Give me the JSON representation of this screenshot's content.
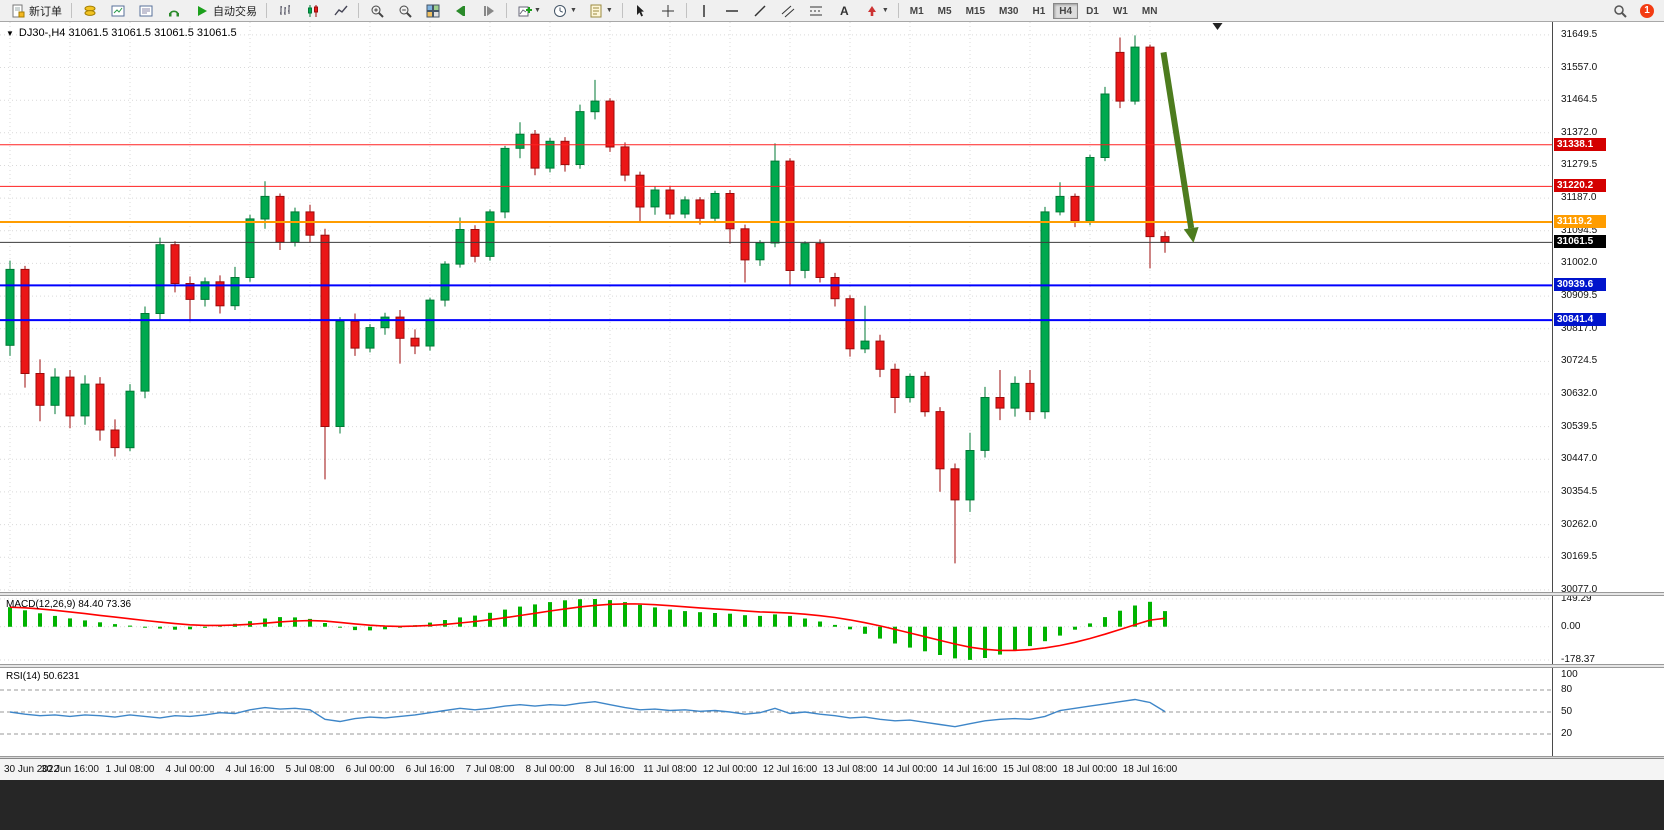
{
  "toolbar": {
    "new_order_label": "新订单",
    "auto_trading_label": "自动交易",
    "timeframes": [
      "M1",
      "M5",
      "M15",
      "M30",
      "H1",
      "H4",
      "D1",
      "W1",
      "MN"
    ],
    "active_timeframe": "H4",
    "notification_count": "1"
  },
  "icons": {
    "new_order": "document-plus",
    "auto_trading": "play-triangle-green",
    "search": "magnifier",
    "cursor": "arrow-pointer",
    "crosshair": "plus-cross",
    "text_tool": "letter-A"
  },
  "chart": {
    "title": "DJ30-,H4  31061.5 31061.5 31061.5 31061.5",
    "symbol": "DJ30-",
    "timeframe": "H4"
  },
  "indicators": {
    "macd_label": "MACD(12,26,9) 84.40 73.36",
    "rsi_label": "RSI(14) 50.6231"
  },
  "colors": {
    "up": "#00a94f",
    "up_stroke": "#007a35",
    "down": "#ea1717",
    "down_stroke": "#9c0b0b",
    "grid": "#d9d9d9",
    "macd_hist": "#00b300",
    "macd_signal": "#ff0000",
    "rsi_line": "#3e86c8",
    "accent_red_line": "#ff2020",
    "accent_orange_line": "#ff9d00",
    "accent_blue_line": "#0000ff"
  },
  "axes": {
    "price_ticks": [
      31649.5,
      31557.0,
      31464.5,
      31372.0,
      31279.5,
      31187.0,
      31094.5,
      31002.0,
      30909.5,
      30817.0,
      30724.5,
      30632.0,
      30539.5,
      30447.0,
      30354.5,
      30262.0,
      30169.5,
      30077.0
    ],
    "macd_ticks": [
      {
        "label": "149.29",
        "value": 149.29
      },
      {
        "label": "0.00",
        "value": 0
      },
      {
        "label": "-178.37",
        "value": -178.37
      }
    ],
    "rsi_ticks": [
      {
        "label": "100",
        "value": 100
      },
      {
        "label": "80",
        "value": 80
      },
      {
        "label": "50",
        "value": 50
      },
      {
        "label": "20",
        "value": 20
      }
    ],
    "time_labels": [
      "30 Jun 2022",
      "30 Jun 16:00",
      "1 Jul 08:00",
      "4 Jul 00:00",
      "4 Jul 16:00",
      "5 Jul 08:00",
      "6 Jul 00:00",
      "6 Jul 16:00",
      "7 Jul 08:00",
      "8 Jul 00:00",
      "8 Jul 16:00",
      "11 Jul 08:00",
      "12 Jul 00:00",
      "12 Jul 16:00",
      "13 Jul 08:00",
      "14 Jul 00:00",
      "14 Jul 16:00",
      "15 Jul 08:00",
      "18 Jul 00:00",
      "18 Jul 16:00"
    ]
  },
  "chart_data": [
    {
      "type": "candlestick",
      "symbol": "DJ30-",
      "timeframe": "H4",
      "ohlc_current": [
        31061.5,
        31061.5,
        31061.5,
        31061.5
      ],
      "ylim": [
        30071,
        31686
      ],
      "candles": [
        [
          30770,
          31010,
          30740,
          30985
        ],
        [
          30985,
          30995,
          30650,
          30690
        ],
        [
          30690,
          30730,
          30555,
          30600
        ],
        [
          30600,
          30705,
          30575,
          30680
        ],
        [
          30680,
          30700,
          30535,
          30570
        ],
        [
          30570,
          30685,
          30545,
          30660
        ],
        [
          30660,
          30680,
          30500,
          30530
        ],
        [
          30530,
          30560,
          30455,
          30480
        ],
        [
          30480,
          30660,
          30470,
          30640
        ],
        [
          30640,
          30880,
          30620,
          30860
        ],
        [
          30860,
          31075,
          30840,
          31055
        ],
        [
          31055,
          31065,
          30920,
          30945
        ],
        [
          30945,
          30965,
          30838,
          30900
        ],
        [
          30900,
          30962,
          30880,
          30950
        ],
        [
          30950,
          30968,
          30860,
          30882
        ],
        [
          30882,
          30992,
          30870,
          30962
        ],
        [
          30962,
          31140,
          30950,
          31128
        ],
        [
          31128,
          31235,
          31100,
          31192
        ],
        [
          31192,
          31200,
          31040,
          31062
        ],
        [
          31062,
          31160,
          31050,
          31148
        ],
        [
          31148,
          31168,
          31060,
          31082
        ],
        [
          31082,
          31100,
          30390,
          30540
        ],
        [
          30540,
          30850,
          30520,
          30838
        ],
        [
          30838,
          30860,
          30740,
          30762
        ],
        [
          30762,
          30830,
          30750,
          30820
        ],
        [
          30820,
          30862,
          30800,
          30850
        ],
        [
          30850,
          30870,
          30718,
          30790
        ],
        [
          30790,
          30815,
          30745,
          30768
        ],
        [
          30768,
          30905,
          30755,
          30898
        ],
        [
          30898,
          31008,
          30880,
          31000
        ],
        [
          31000,
          31132,
          30990,
          31098
        ],
        [
          31098,
          31110,
          31005,
          31022
        ],
        [
          31022,
          31155,
          31010,
          31148
        ],
        [
          31148,
          31335,
          31130,
          31328
        ],
        [
          31328,
          31402,
          31300,
          31368
        ],
        [
          31368,
          31380,
          31252,
          31272
        ],
        [
          31272,
          31358,
          31260,
          31348
        ],
        [
          31348,
          31360,
          31262,
          31282
        ],
        [
          31282,
          31452,
          31270,
          31432
        ],
        [
          31432,
          31522,
          31410,
          31462
        ],
        [
          31462,
          31470,
          31318,
          31332
        ],
        [
          31332,
          31345,
          31235,
          31252
        ],
        [
          31252,
          31262,
          31118,
          31162
        ],
        [
          31162,
          31220,
          31140,
          31210
        ],
        [
          31210,
          31222,
          31128,
          31142
        ],
        [
          31142,
          31192,
          31130,
          31182
        ],
        [
          31182,
          31190,
          31112,
          31130
        ],
        [
          31130,
          31208,
          31118,
          31200
        ],
        [
          31200,
          31210,
          31058,
          31100
        ],
        [
          31100,
          31112,
          30948,
          31012
        ],
        [
          31012,
          31068,
          30995,
          31060
        ],
        [
          31060,
          31342,
          31048,
          31292
        ],
        [
          31292,
          31300,
          30938,
          30982
        ],
        [
          30982,
          31065,
          30960,
          31058
        ],
        [
          31058,
          31070,
          30948,
          30962
        ],
        [
          30962,
          30975,
          30880,
          30902
        ],
        [
          30902,
          30912,
          30738,
          30760
        ],
        [
          30760,
          30882,
          30748,
          30782
        ],
        [
          30782,
          30800,
          30680,
          30702
        ],
        [
          30702,
          30718,
          30578,
          30622
        ],
        [
          30622,
          30690,
          30608,
          30682
        ],
        [
          30682,
          30695,
          30568,
          30582
        ],
        [
          30582,
          30595,
          30355,
          30420
        ],
        [
          30420,
          30435,
          30152,
          30332
        ],
        [
          30332,
          30522,
          30298,
          30472
        ],
        [
          30472,
          30652,
          30452,
          30622
        ],
        [
          30622,
          30700,
          30558,
          30592
        ],
        [
          30592,
          30682,
          30568,
          30662
        ],
        [
          30662,
          30700,
          30558,
          30582
        ],
        [
          30582,
          31162,
          30562,
          31148
        ],
        [
          31148,
          31232,
          31138,
          31192
        ],
        [
          31192,
          31200,
          31105,
          31122
        ],
        [
          31122,
          31310,
          31110,
          31302
        ],
        [
          31302,
          31502,
          31292,
          31482
        ],
        [
          31600,
          31642,
          31442,
          31462
        ],
        [
          31462,
          31648,
          31452,
          31615
        ],
        [
          31615,
          31622,
          30988,
          31078
        ],
        [
          31078,
          31092,
          31032,
          31061.5
        ]
      ],
      "hlines": [
        {
          "price": 31338.1,
          "label": "31338.1",
          "color": "#ff2020",
          "badge": "#d40000",
          "width": 1
        },
        {
          "price": 31220.2,
          "label": "31220.2",
          "color": "#ff2020",
          "badge": "#d40000",
          "width": 1
        },
        {
          "price": 31119.2,
          "label": "31119.2",
          "color": "#ff9d00",
          "badge": "#ff9d00",
          "width": 2
        },
        {
          "price": 30939.6,
          "label": "30939.6",
          "color": "#0000ff",
          "badge": "#0014cc",
          "width": 2
        },
        {
          "price": 30841.4,
          "label": "30841.4",
          "color": "#0000ff",
          "badge": "#0014cc",
          "width": 2
        }
      ],
      "current_price": {
        "price": 31061.5,
        "label": "31061.5",
        "color": "#3c3c3c",
        "badge": "#000000"
      },
      "arrow": {
        "from": {
          "i": 76.9,
          "price": 31600
        },
        "to": {
          "i": 78.9,
          "price": 31060
        },
        "color": "#4d7c1e"
      },
      "shift_marker_i": 80.5
    },
    {
      "type": "bar",
      "name": "MACD",
      "params": [
        12,
        26,
        9
      ],
      "signal_period": 9,
      "current_values": [
        84.4,
        73.36
      ],
      "ylim": [
        -200,
        165
      ],
      "values": [
        105,
        88,
        72,
        58,
        45,
        34,
        24,
        14,
        6,
        -2,
        -10,
        -16,
        -14,
        -6,
        6,
        16,
        30,
        44,
        52,
        50,
        42,
        20,
        -5,
        -18,
        -20,
        -14,
        -4,
        8,
        22,
        36,
        50,
        60,
        75,
        92,
        108,
        120,
        132,
        142,
        148,
        149,
        143,
        132,
        118,
        104,
        92,
        84,
        78,
        74,
        70,
        62,
        58,
        66,
        58,
        44,
        28,
        10,
        -14,
        -38,
        -64,
        -90,
        -112,
        -132,
        -152,
        -170,
        -178,
        -168,
        -150,
        -128,
        -104,
        -78,
        -48,
        -16,
        18,
        52,
        86,
        114,
        134,
        84
      ]
    },
    {
      "type": "line",
      "name": "RSI",
      "period": 14,
      "current_value": 50.6231,
      "ylim": [
        -10,
        110
      ],
      "levels": [
        80,
        50,
        20
      ],
      "values": [
        50,
        47,
        45,
        46,
        44,
        46,
        45,
        43,
        46,
        44,
        42,
        45,
        44,
        46,
        49,
        48,
        53,
        56,
        54,
        55,
        53,
        40,
        37,
        41,
        43,
        42,
        44,
        46,
        49,
        52,
        55,
        53,
        55,
        58,
        60,
        58,
        60,
        59,
        62,
        64,
        60,
        56,
        53,
        54,
        52,
        53,
        51,
        52,
        50,
        47,
        49,
        55,
        48,
        50,
        47,
        45,
        42,
        43,
        40,
        38,
        39,
        36,
        33,
        30,
        34,
        38,
        40,
        41,
        40,
        44,
        52,
        55,
        58,
        61,
        64,
        67,
        63,
        50.6
      ]
    }
  ]
}
